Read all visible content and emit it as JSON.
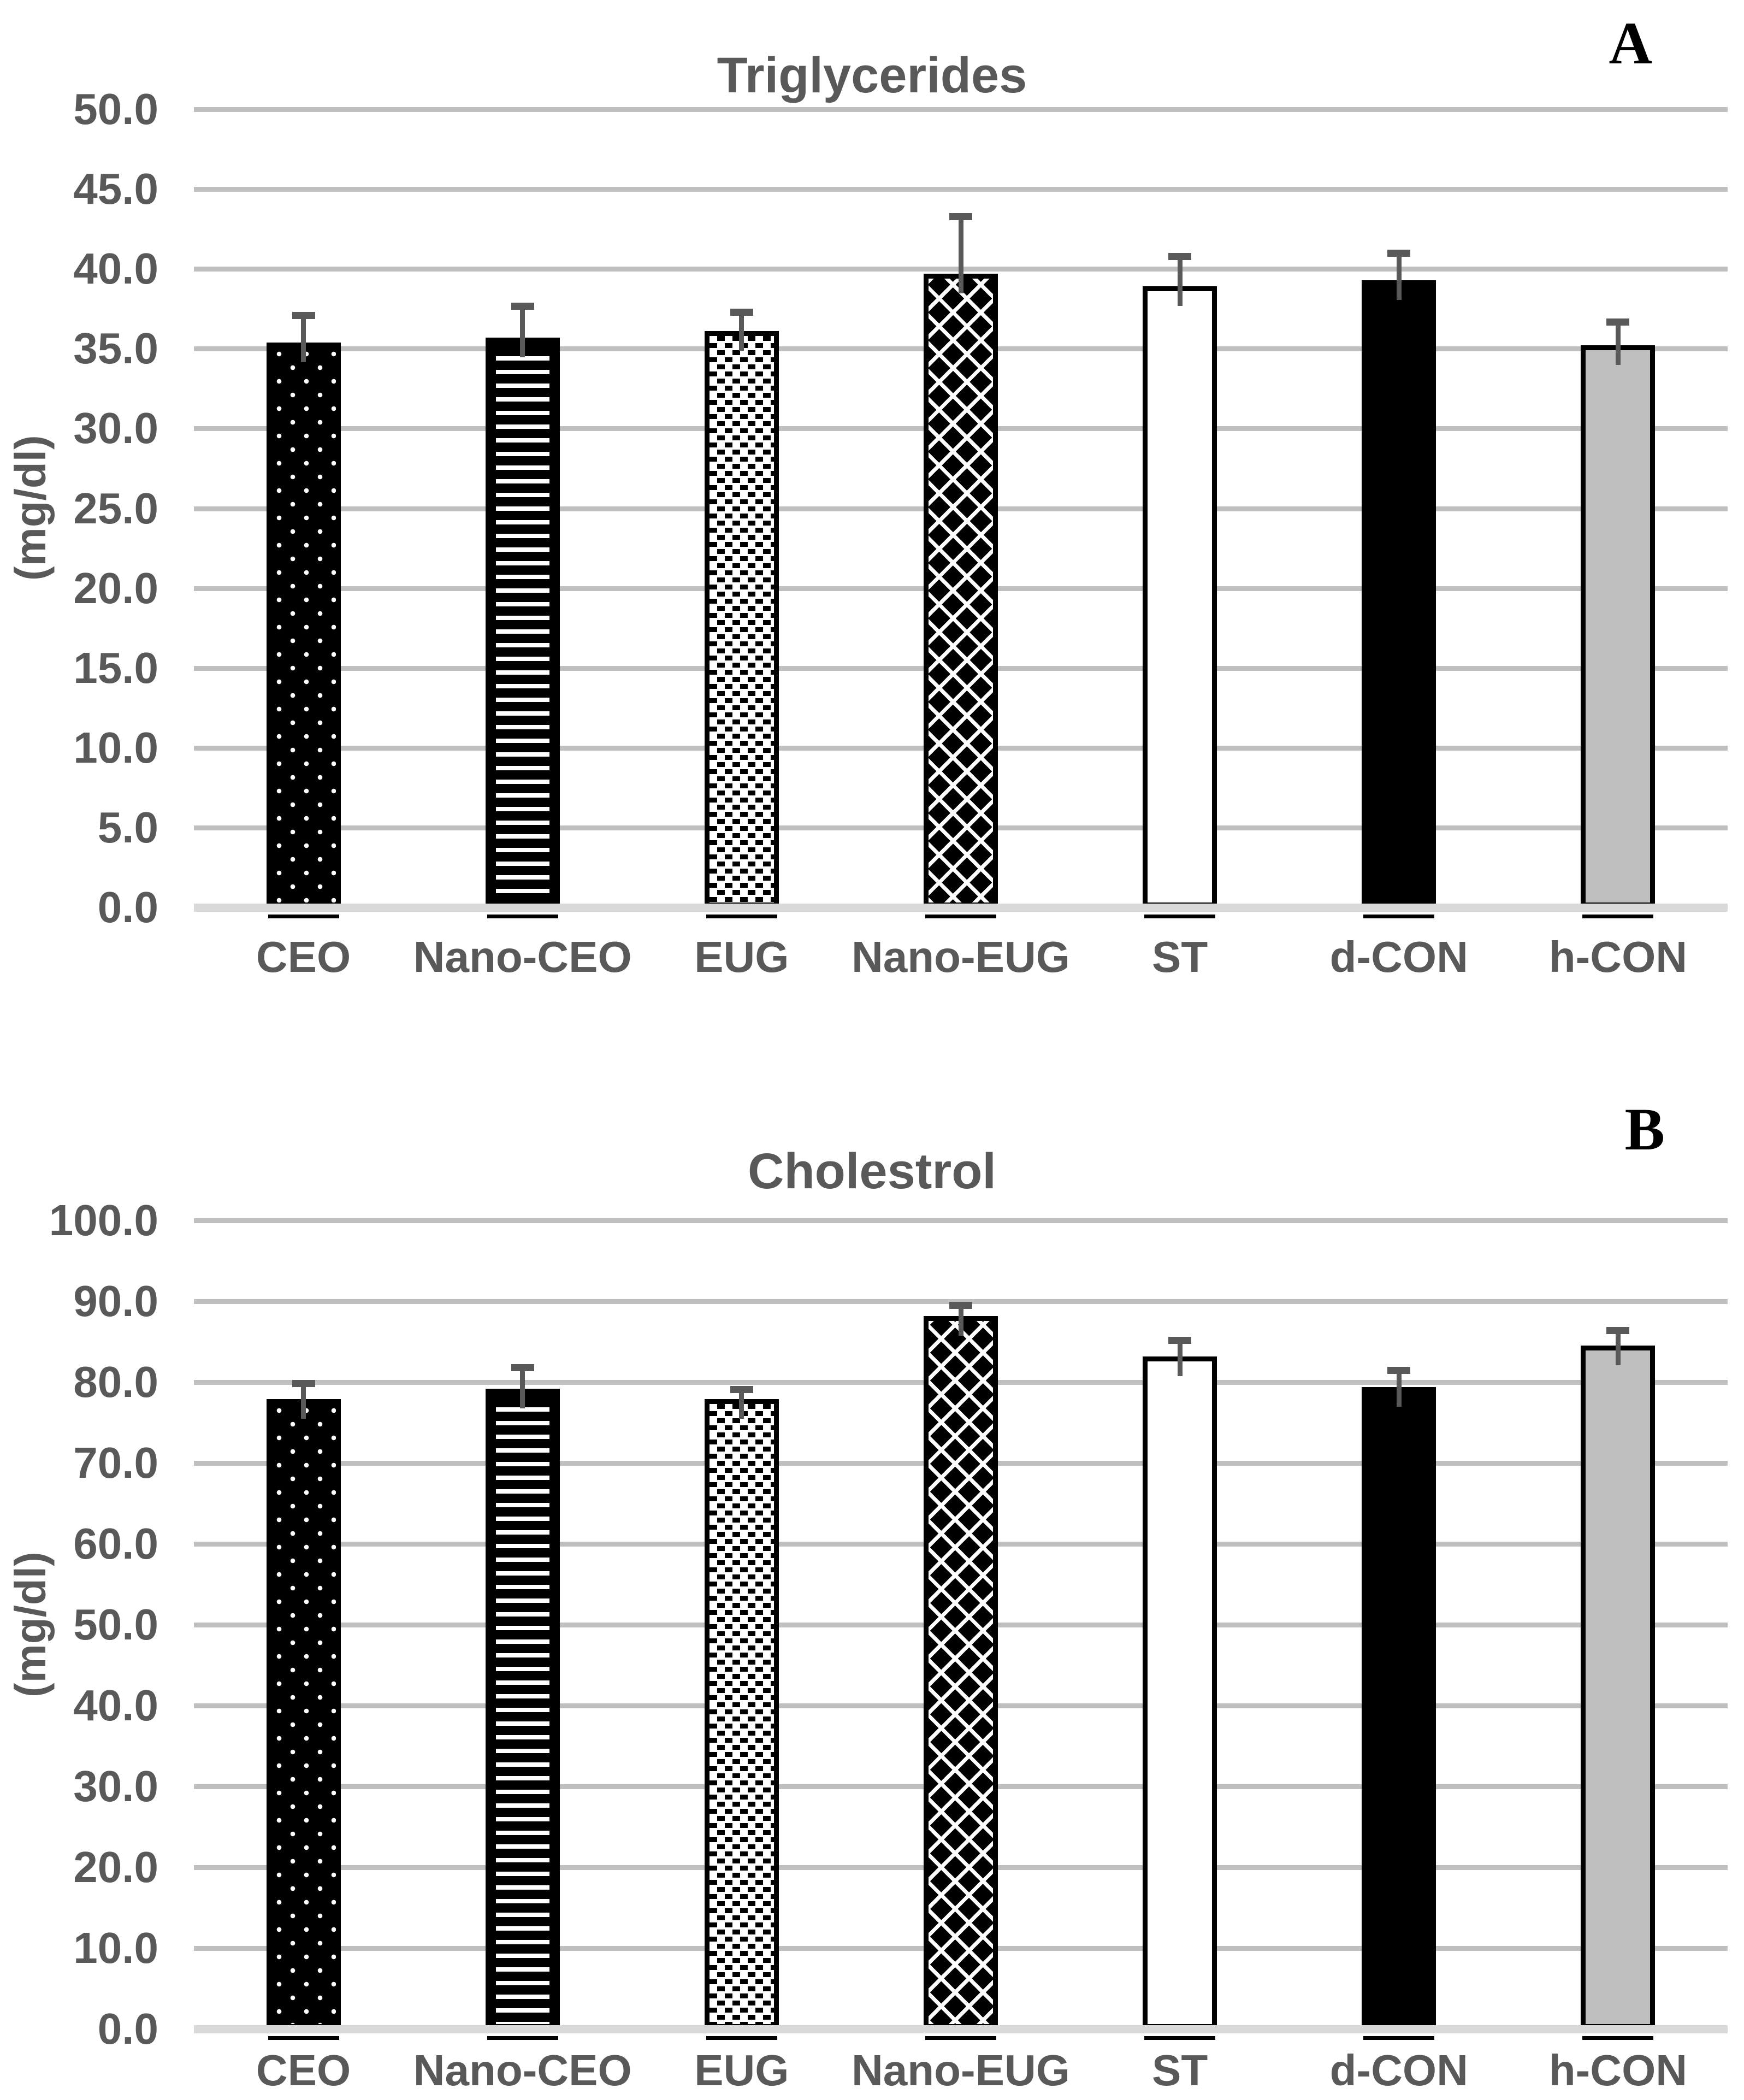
{
  "figure": {
    "panels": [
      {
        "panel_label": "A"
      },
      {
        "panel_label": "B"
      }
    ]
  },
  "chart_data": [
    {
      "type": "bar",
      "title": "Triglycerides",
      "panel_label": "A",
      "xlabel": "",
      "ylabel": "(mg/dl)",
      "categories": [
        "CEO",
        "Nano-CEO",
        "EUG",
        "Nano-EUG",
        "ST",
        "d-CON",
        "h-CON"
      ],
      "values": [
        35.4,
        35.7,
        36.1,
        39.7,
        38.9,
        39.3,
        35.2
      ],
      "error_plus": [
        1.9,
        2.2,
        1.4,
        3.8,
        2.1,
        1.9,
        1.7
      ],
      "ylim": [
        0,
        50
      ],
      "ytick_step": 5,
      "ytick_labels": [
        "0.0",
        "5.0",
        "10.0",
        "15.0",
        "20.0",
        "25.0",
        "30.0",
        "35.0",
        "40.0",
        "45.0",
        "50.0"
      ],
      "grid": true,
      "legend": false,
      "bar_patterns": [
        "white-dots-on-black",
        "white-horizontal-stripes-on-black",
        "black-dash-grid-on-white",
        "white-diamond-lattice-on-black",
        "solid-white-black-outline",
        "solid-black",
        "solid-gray"
      ]
    },
    {
      "type": "bar",
      "title": "Cholestrol",
      "panel_label": "B",
      "xlabel": "",
      "ylabel": "(mg/dl)",
      "categories": [
        "CEO",
        "Nano-CEO",
        "EUG",
        "Nano-EUG",
        "ST",
        "d-CON",
        "h-CON"
      ],
      "values": [
        77.9,
        79.2,
        77.9,
        88.2,
        83.2,
        79.4,
        84.5
      ],
      "error_plus": [
        2.4,
        3.0,
        1.6,
        1.7,
        2.4,
        2.5,
        2.3
      ],
      "ylim": [
        0,
        100
      ],
      "ytick_step": 10,
      "ytick_labels": [
        "0.0",
        "10.0",
        "20.0",
        "30.0",
        "40.0",
        "50.0",
        "60.0",
        "70.0",
        "80.0",
        "90.0",
        "100.0"
      ],
      "grid": true,
      "legend": false,
      "bar_patterns": [
        "white-dots-on-black",
        "white-horizontal-stripes-on-black",
        "black-dash-grid-on-white",
        "white-diamond-lattice-on-black",
        "solid-white-black-outline",
        "solid-black",
        "solid-gray"
      ]
    }
  ],
  "colors": {
    "text": "#595959",
    "panel_label": "#000000",
    "gridline": "#BFBFBF",
    "baseline": "#D9D9D9",
    "bar_outline": "#000000",
    "gray_fill": "#BFBFBF",
    "error_bar": "#595959",
    "background": "#FFFFFF"
  }
}
